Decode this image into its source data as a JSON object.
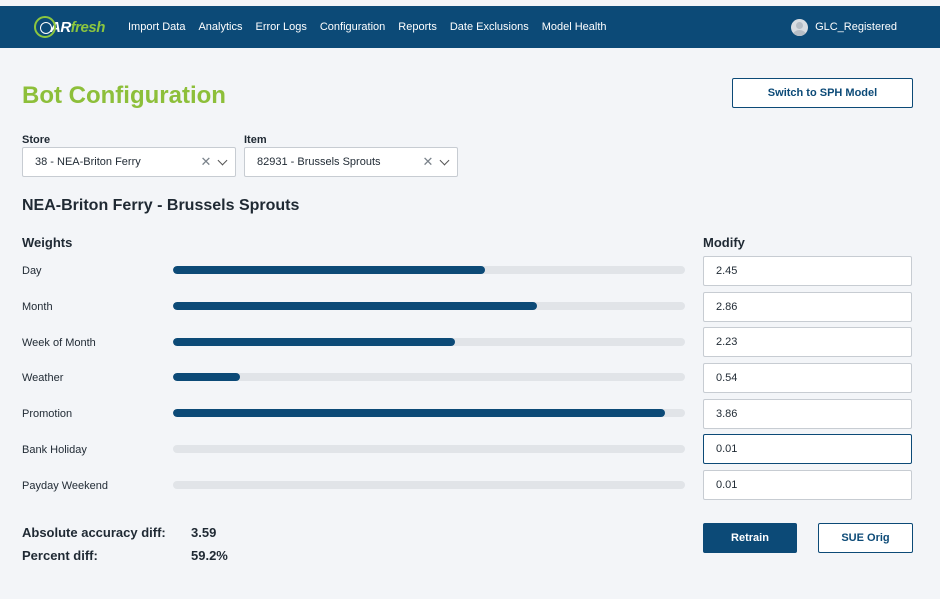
{
  "header": {
    "logo": {
      "prefix": "AR",
      "suffix": "fresh"
    },
    "nav": [
      "Import Data",
      "Analytics",
      "Error Logs",
      "Configuration",
      "Reports",
      "Date Exclusions",
      "Model Health"
    ],
    "user": "GLC_Registered"
  },
  "page": {
    "title": "Bot Configuration",
    "switch_button": "Switch to SPH Model"
  },
  "filters": {
    "store": {
      "label": "Store",
      "value": "38 - NEA-Briton Ferry"
    },
    "item": {
      "label": "Item",
      "value": "82931 - Brussels Sprouts"
    }
  },
  "section_title": "NEA-Briton Ferry - Brussels Sprouts",
  "weights": {
    "heading": "Weights",
    "modify_heading": "Modify",
    "rows": [
      {
        "label": "Day",
        "value": "2.45",
        "fill": 0.61
      },
      {
        "label": "Month",
        "value": "2.86",
        "fill": 0.71
      },
      {
        "label": "Week of Month",
        "value": "2.23",
        "fill": 0.55
      },
      {
        "label": "Weather",
        "value": "0.54",
        "fill": 0.13
      },
      {
        "label": "Promotion",
        "value": "3.86",
        "fill": 0.96
      },
      {
        "label": "Bank Holiday",
        "value": "0.01",
        "fill": 0.0
      },
      {
        "label": "Payday Weekend",
        "value": "0.01",
        "fill": 0.0
      }
    ]
  },
  "stats": {
    "abs_label": "Absolute accuracy diff:",
    "abs_value": "3.59",
    "pct_label": "Percent diff:",
    "pct_value": "59.2%"
  },
  "actions": {
    "retrain": "Retrain",
    "sue": "SUE Orig"
  },
  "colors": {
    "nav_bg": "#0c4a77",
    "accent_green": "#8dbf3a",
    "bar_fill": "#0c4a77",
    "bar_track": "#e1e4e8"
  }
}
